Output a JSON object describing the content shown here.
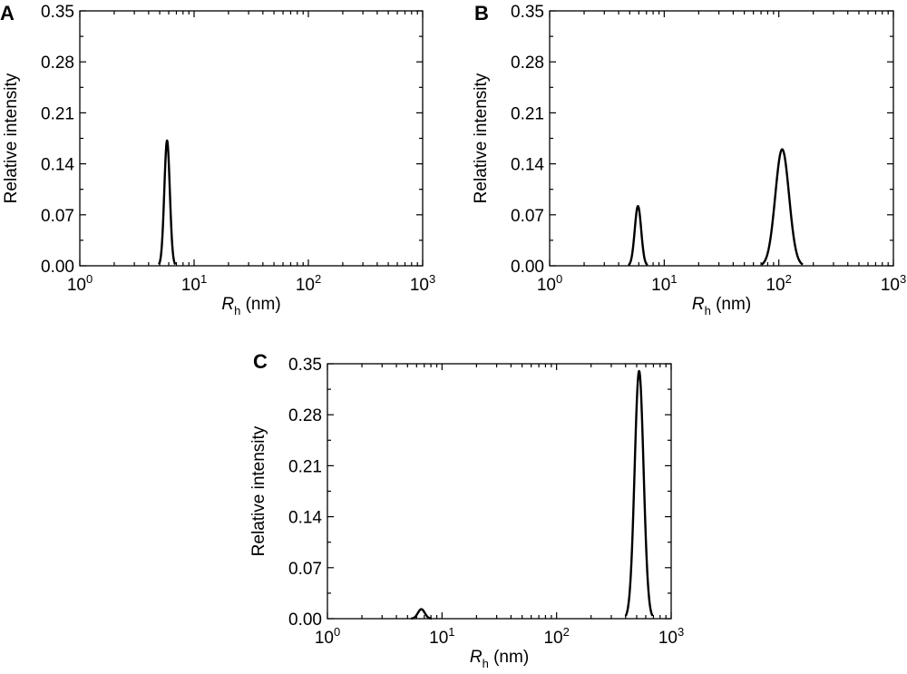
{
  "chart_data": [
    {
      "panel": "A",
      "type": "line",
      "xlabel_italic": "R",
      "xlabel_sub": "h",
      "xlabel_unit": "(nm)",
      "ylabel": "Relative intensity",
      "x_scale": "log",
      "xlim": [
        1,
        1000
      ],
      "ylim": [
        0,
        0.35
      ],
      "x_ticks": [
        {
          "base": "10",
          "exp": "0"
        },
        {
          "base": "10",
          "exp": "1"
        },
        {
          "base": "10",
          "exp": "2"
        },
        {
          "base": "10",
          "exp": "3"
        }
      ],
      "y_ticks": [
        "0.00",
        "0.07",
        "0.14",
        "0.21",
        "0.28",
        "0.35"
      ],
      "grid": false,
      "peaks": [
        {
          "center": 5.8,
          "height": 0.172,
          "log_sigma": 0.024
        }
      ]
    },
    {
      "panel": "B",
      "type": "line",
      "xlabel_italic": "R",
      "xlabel_sub": "h",
      "xlabel_unit": "(nm)",
      "ylabel": "Relative intensity",
      "x_scale": "log",
      "xlim": [
        1,
        1000
      ],
      "ylim": [
        0,
        0.35
      ],
      "x_ticks": [
        {
          "base": "10",
          "exp": "0"
        },
        {
          "base": "10",
          "exp": "1"
        },
        {
          "base": "10",
          "exp": "2"
        },
        {
          "base": "10",
          "exp": "3"
        }
      ],
      "y_ticks": [
        "0.00",
        "0.07",
        "0.14",
        "0.21",
        "0.28",
        "0.35"
      ],
      "grid": false,
      "peaks": [
        {
          "center": 5.9,
          "height": 0.082,
          "log_sigma": 0.028
        },
        {
          "center": 107,
          "height": 0.16,
          "log_sigma": 0.06
        }
      ]
    },
    {
      "panel": "C",
      "type": "line",
      "xlabel_italic": "R",
      "xlabel_sub": "h",
      "xlabel_unit": "(nm)",
      "ylabel": "Relative intensity",
      "x_scale": "log",
      "xlim": [
        1,
        1000
      ],
      "ylim": [
        0,
        0.35
      ],
      "x_ticks": [
        {
          "base": "10",
          "exp": "0"
        },
        {
          "base": "10",
          "exp": "1"
        },
        {
          "base": "10",
          "exp": "2"
        },
        {
          "base": "10",
          "exp": "3"
        }
      ],
      "y_ticks": [
        "0.00",
        "0.07",
        "0.14",
        "0.21",
        "0.28",
        "0.35"
      ],
      "grid": false,
      "peaks": [
        {
          "center": 6.6,
          "height": 0.013,
          "log_sigma": 0.03
        },
        {
          "center": 525,
          "height": 0.34,
          "log_sigma": 0.039
        }
      ]
    }
  ]
}
